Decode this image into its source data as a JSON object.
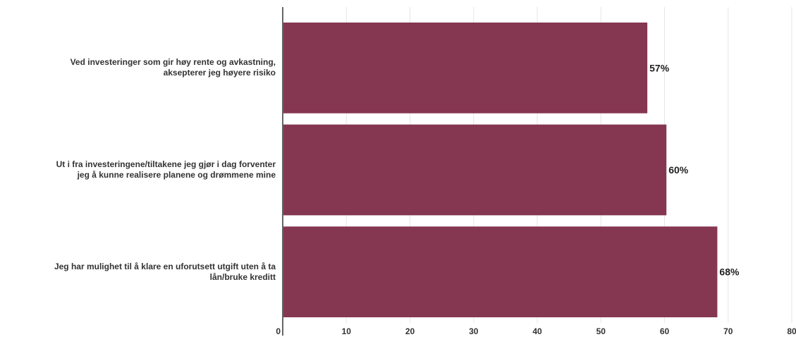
{
  "chart_data": {
    "type": "bar",
    "orientation": "horizontal",
    "categories": [
      [
        "Ved investeringer som gir høy rente og avkastning,",
        "aksepterer jeg høyere risiko"
      ],
      [
        "Ut i fra investeringene/tiltakene jeg gjør i dag forventer",
        "jeg å kunne realisere planene og drømmene mine"
      ],
      [
        "Jeg har mulighet til å klare en uforutsett utgift uten å ta",
        "lån/bruke kreditt"
      ]
    ],
    "values": [
      57.3,
      60.3,
      68.3
    ],
    "data_labels": [
      "57%",
      "60%",
      "68%"
    ],
    "xlim": [
      0,
      80
    ],
    "ticks": [
      0,
      10,
      20,
      30,
      40,
      50,
      60,
      70,
      80
    ],
    "title": "",
    "xlabel": "",
    "ylabel": "",
    "grid": true,
    "bar_color": "#853651"
  }
}
